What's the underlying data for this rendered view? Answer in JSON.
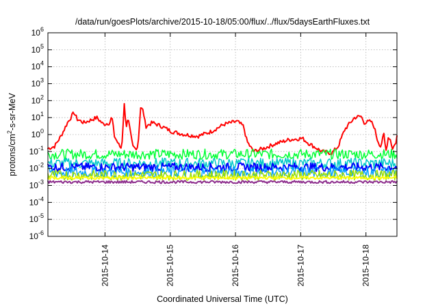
{
  "chart_data": {
    "type": "line",
    "title": "/data/run/goesPlots/archive/2015-10-18/05:00/flux/../flux/5daysEarthFluxes.txt",
    "xlabel": "Coordinated Universal Time (UTC)",
    "ylabel_main": "protons/cm",
    "ylabel_sup": "2",
    "ylabel_tail": "-s-sr-MeV",
    "x_tick_labels": [
      "2015-10-14",
      "2015-10-15",
      "2015-10-16",
      "2015-10-17",
      "2015-10-18"
    ],
    "y_tick_labels": [
      {
        "base": "10",
        "exp": "-6"
      },
      {
        "base": "10",
        "exp": "-5"
      },
      {
        "base": "10",
        "exp": "-4"
      },
      {
        "base": "10",
        "exp": "-3"
      },
      {
        "base": "10",
        "exp": "-2"
      },
      {
        "base": "10",
        "exp": "-1"
      },
      {
        "base": "10",
        "exp": "0"
      },
      {
        "base": "10",
        "exp": "1"
      },
      {
        "base": "10",
        "exp": "2"
      },
      {
        "base": "10",
        "exp": "3"
      },
      {
        "base": "10",
        "exp": "4"
      },
      {
        "base": "10",
        "exp": "5"
      },
      {
        "base": "10",
        "exp": "6"
      }
    ],
    "y_scale": "log",
    "ylim": [
      1e-06,
      1000000.0
    ],
    "xlim_days": [
      "2015-10-13 03:00",
      "2015-10-18 07:00"
    ],
    "grid": true,
    "legend": "none",
    "series": [
      {
        "color": "#ff0000",
        "width": 2,
        "jitter": 0.12,
        "points": [
          [
            0.0,
            0.15
          ],
          [
            0.1,
            0.2
          ],
          [
            0.2,
            0.8
          ],
          [
            0.3,
            5
          ],
          [
            0.4,
            20
          ],
          [
            0.45,
            8
          ],
          [
            0.55,
            5
          ],
          [
            0.65,
            7
          ],
          [
            0.75,
            10
          ],
          [
            0.85,
            4
          ],
          [
            0.95,
            5
          ],
          [
            0.98,
            12
          ],
          [
            1.02,
            0.8
          ],
          [
            1.1,
            0.2
          ],
          [
            1.13,
            0.15
          ],
          [
            1.17,
            60
          ],
          [
            1.2,
            3
          ],
          [
            1.23,
            8
          ],
          [
            1.3,
            0.2
          ],
          [
            1.34,
            0.15
          ],
          [
            1.38,
            0.2
          ],
          [
            1.42,
            40
          ],
          [
            1.46,
            25
          ],
          [
            1.5,
            3
          ],
          [
            1.6,
            5
          ],
          [
            1.75,
            3
          ],
          [
            1.9,
            1.5
          ],
          [
            2.1,
            1
          ],
          [
            2.3,
            0.8
          ],
          [
            2.5,
            1.5
          ],
          [
            2.7,
            4
          ],
          [
            2.9,
            6
          ],
          [
            3.0,
            3
          ],
          [
            3.05,
            0.4
          ],
          [
            3.15,
            0.1
          ],
          [
            3.3,
            0.15
          ],
          [
            3.5,
            0.3
          ],
          [
            3.7,
            0.5
          ],
          [
            3.9,
            0.6
          ],
          [
            4.0,
            0.3
          ],
          [
            4.2,
            0.1
          ],
          [
            4.35,
            0.08
          ],
          [
            4.45,
            0.2
          ],
          [
            4.55,
            2
          ],
          [
            4.7,
            10
          ],
          [
            4.8,
            12
          ],
          [
            4.85,
            5
          ],
          [
            4.95,
            6
          ],
          [
            5.0,
            3
          ],
          [
            5.05,
            0.5
          ],
          [
            5.1,
            0.2
          ],
          [
            5.15,
            1
          ],
          [
            5.18,
            0.1
          ],
          [
            5.22,
            0.8
          ],
          [
            5.25,
            0.5
          ],
          [
            5.28,
            0.15
          ],
          [
            5.33,
            0.3
          ],
          [
            5.35,
            0.8
          ]
        ]
      },
      {
        "color": "#00ff33",
        "width": 1.5,
        "jitter": 0.3,
        "points": [
          [
            0,
            0.07
          ],
          [
            5.35,
            0.07
          ]
        ]
      },
      {
        "color": "#00c8c8",
        "width": 1.5,
        "jitter": 0.32,
        "points": [
          [
            0,
            0.02
          ],
          [
            5.35,
            0.02
          ]
        ]
      },
      {
        "color": "#0000ff",
        "width": 2,
        "jitter": 0.25,
        "points": [
          [
            0,
            0.012
          ],
          [
            5.35,
            0.012
          ]
        ]
      },
      {
        "color": "#00a0ff",
        "width": 1.5,
        "jitter": 0.35,
        "points": [
          [
            0,
            0.006
          ],
          [
            5.35,
            0.006
          ]
        ]
      },
      {
        "color": "#a0e000",
        "width": 1.5,
        "jitter": 0.3,
        "points": [
          [
            0,
            0.004
          ],
          [
            5.35,
            0.004
          ]
        ]
      },
      {
        "color": "#ffff00",
        "width": 2,
        "jitter": 0.08,
        "points": [
          [
            0,
            0.0028
          ],
          [
            5.35,
            0.0028
          ]
        ]
      },
      {
        "color": "#8b2a8b",
        "width": 2,
        "jitter": 0.08,
        "points": [
          [
            0,
            0.0016
          ],
          [
            5.35,
            0.0016
          ]
        ]
      }
    ]
  }
}
